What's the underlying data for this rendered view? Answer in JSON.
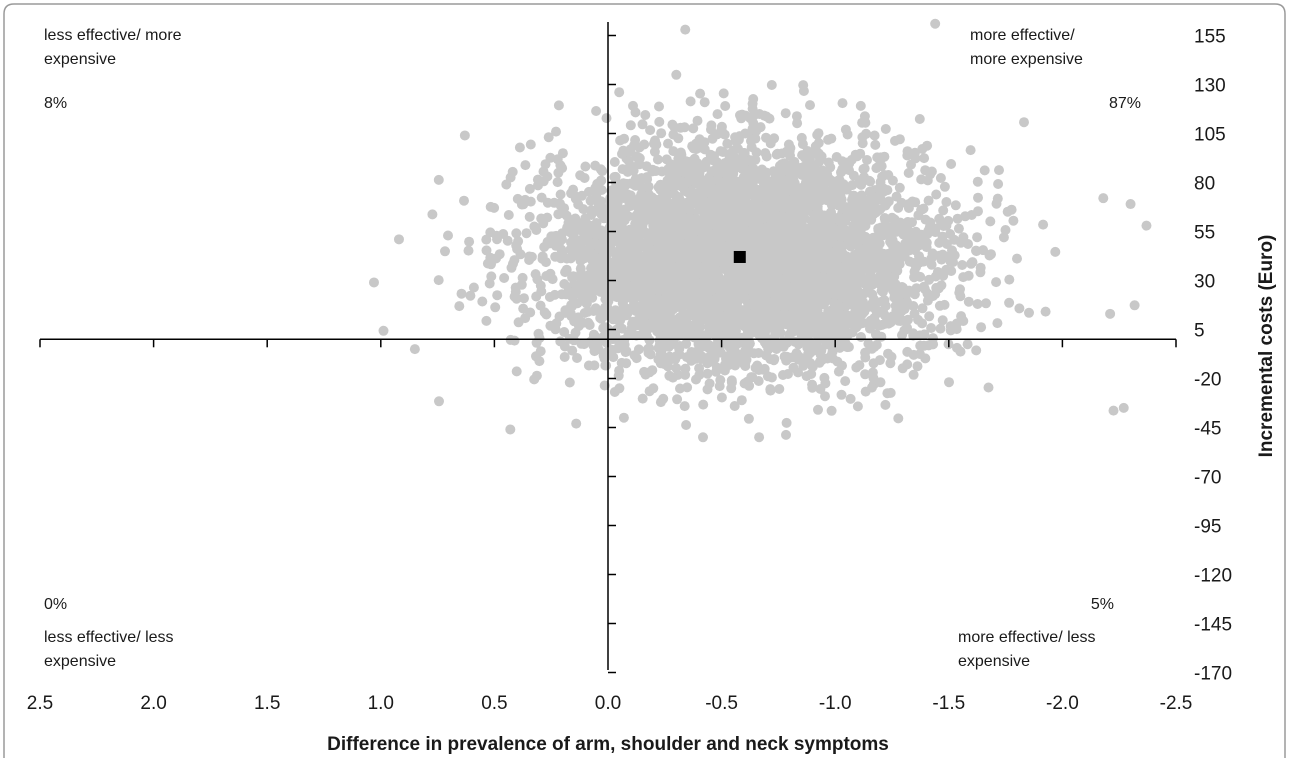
{
  "chart_data": {
    "type": "scatter",
    "title": "",
    "xlabel": "Difference in prevalence of arm, shoulder and neck symptoms",
    "ylabel": "Incremental costs (Euro)",
    "x_axis": {
      "range": [
        2.5,
        -2.5
      ],
      "reversed": true,
      "ticks": [
        2.5,
        2.0,
        1.5,
        1.0,
        0.5,
        0.0,
        -0.5,
        -1.0,
        -1.5,
        -2.0,
        -2.5
      ],
      "tick_labels": [
        "2.5",
        "2.0",
        "1.5",
        "1.0",
        "0.5",
        "0.0",
        "-0.5",
        "-1.0",
        "-1.5",
        "-2.0",
        "-2.5"
      ]
    },
    "y_axis": {
      "range": [
        -182.5,
        167.5
      ],
      "position": "right",
      "ticks": [
        155,
        130,
        105,
        80,
        55,
        30,
        5,
        -20,
        -45,
        -70,
        -95,
        -120,
        -145,
        -170
      ],
      "tick_labels": [
        "155",
        "130",
        "105",
        "80",
        "55",
        "30",
        "5",
        "-20",
        "-45",
        "-70",
        "-95",
        "-120",
        "-145",
        "-170"
      ]
    },
    "grid": false,
    "legend": "none",
    "quadrants": [
      {
        "line1": "less effective/ more",
        "line2": "expensive",
        "percent": "8%",
        "corner": "top-left"
      },
      {
        "line1": "more effective/",
        "line2": "more expensive",
        "percent": "87%",
        "corner": "top-right"
      },
      {
        "line1": "less effective/ less",
        "line2": "expensive",
        "percent": "0%",
        "corner": "bottom-left"
      },
      {
        "line1": "more effective/ less",
        "line2": "expensive",
        "percent": "5%",
        "corner": "bottom-right"
      }
    ],
    "cloud": {
      "count": 5000,
      "x_mean": -0.58,
      "x_sd": 0.42,
      "y_mean": 42,
      "y_sd": 28,
      "color": "#c8c8c8"
    },
    "outliers": [
      {
        "x": 0.43,
        "y": -46
      },
      {
        "x": -2.27,
        "y": -35
      },
      {
        "x": -2.3,
        "y": 69
      },
      {
        "x": -2.37,
        "y": 58
      },
      {
        "x": -2.18,
        "y": 72
      },
      {
        "x": -2.21,
        "y": 13
      },
      {
        "x": 1.03,
        "y": 29
      },
      {
        "x": 0.92,
        "y": 51
      },
      {
        "x": 0.85,
        "y": -5
      },
      {
        "x": 0.63,
        "y": 104
      },
      {
        "x": 0.14,
        "y": -43
      },
      {
        "x": -0.07,
        "y": -40
      },
      {
        "x": -1.44,
        "y": 161
      },
      {
        "x": -0.34,
        "y": 158
      }
    ],
    "point_estimate": {
      "x": -0.58,
      "y": 42,
      "color": "#000000"
    }
  }
}
